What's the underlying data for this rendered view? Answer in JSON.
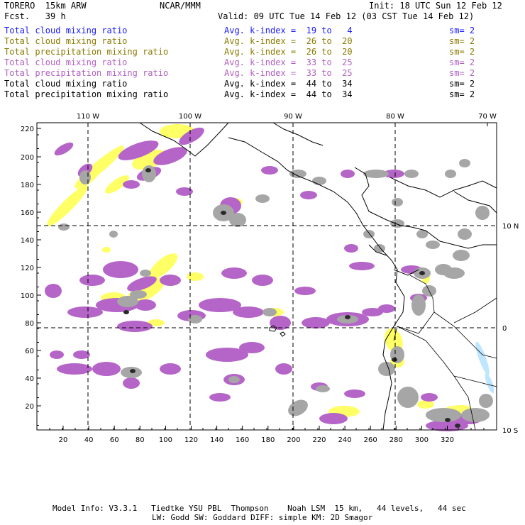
{
  "header": {
    "model": "TORERO  15km ARW",
    "org": "NCAR/MMM",
    "init": "Init: 18 UTC Sun 12 Feb 12",
    "fcst": "Fcst.   39 h",
    "valid": "Valid: 09 UTC Tue 14 Feb 12 (03 CST Tue 14 Feb 12)"
  },
  "legend": [
    {
      "name": "Total cloud mixing ratio",
      "kindex": "Avg. k-index =  19 to   4",
      "sm": "sm= 2",
      "color": "#1a1aff"
    },
    {
      "name": "Total cloud mixing ratio",
      "kindex": "Avg. k-index =  26 to  20",
      "sm": "sm= 2",
      "color": "#8a7a00"
    },
    {
      "name": "Total precipitation mixing ratio",
      "kindex": "Avg. k-index =  26 to  20",
      "sm": "sm= 2",
      "color": "#8a7a00"
    },
    {
      "name": "Total cloud mixing ratio",
      "kindex": "Avg. k-index =  33 to  25",
      "sm": "sm= 2",
      "color": "#b060c0"
    },
    {
      "name": "Total precipitation mixing ratio",
      "kindex": "Avg. k-index =  33 to  25",
      "sm": "sm= 2",
      "color": "#b060c0"
    },
    {
      "name": "Total cloud mixing ratio",
      "kindex": "Avg. k-index =  44 to  34",
      "sm": "sm= 2",
      "color": "#000000"
    },
    {
      "name": "Total precipitation mixing ratio",
      "kindex": "Avg. k-index =  44 to  34",
      "sm": "sm= 2",
      "color": "#000000"
    }
  ],
  "map": {
    "lon_labels": [
      "110 W",
      "100 W",
      "90 W",
      "80 W",
      "70 W"
    ],
    "lat_labels_right": [
      "10 N",
      "0",
      "10 S"
    ],
    "y_ticks": [
      "220",
      "200",
      "180",
      "160",
      "140",
      "120",
      "100",
      "80",
      "60",
      "40",
      "20"
    ],
    "x_ticks": [
      "20",
      "40",
      "60",
      "80",
      "100",
      "120",
      "140",
      "160",
      "180",
      "200",
      "220",
      "240",
      "260",
      "280",
      "300",
      "320"
    ],
    "colors": {
      "yellow": "#ffff66",
      "purple": "#b565c8",
      "gray": "#a6a6a6",
      "dark": "#2a2a2a",
      "blue": "#bfe6ff"
    }
  },
  "footer": {
    "line1": "Model Info: V3.3.1   Tiedtke YSU PBL  Thompson    Noah LSM  15 km,   44 levels,   44 sec",
    "line2": "LW: Godd SW: Goddard DIFF: simple KM: 2D Smagor"
  }
}
